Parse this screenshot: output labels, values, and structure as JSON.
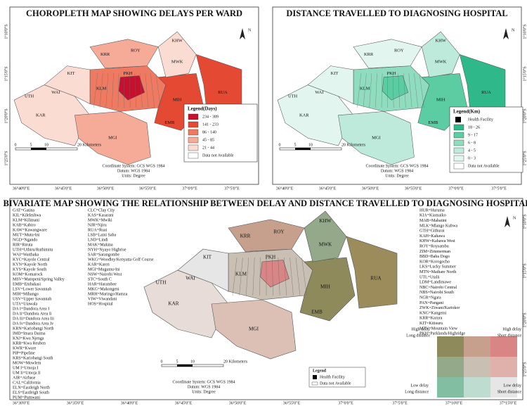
{
  "panels": [
    {
      "title": "CHOROPLETH MAP SHOWING DELAYS PER WARD",
      "legend_title": "Legend(Days)",
      "legend": [
        {
          "label": "234 - 389",
          "color": "#c8102e"
        },
        {
          "label": "141 - 233",
          "color": "#e44a33"
        },
        {
          "label": "86 - 140",
          "color": "#ef7a62"
        },
        {
          "label": "45 - 85",
          "color": "#f6ab99"
        },
        {
          "label": "21 - 44",
          "color": "#fbdcd3"
        },
        {
          "label": "Data not Available",
          "color": "#ffffff"
        }
      ],
      "lon_labels": [
        "36°40'0\"E",
        "36°45'0\"E",
        "36°50'0\"E",
        "36°55'0\"E",
        "37°0'0\"E",
        "37°5'0\"E"
      ],
      "lat_labels": [
        "1°10'0\"S",
        "1°15'0\"S",
        "1°20'0\"S",
        "1°25'0\"S"
      ],
      "scale": [
        "0",
        "5",
        "10",
        "20 Kilometers"
      ],
      "map_labels": [
        "KHW",
        "KRR",
        "ROY",
        "MWK",
        "KIT",
        "RUA",
        "MIH",
        "EMB",
        "KAR",
        "MGI",
        "UTH",
        "WAI",
        "KLM",
        "PKH"
      ]
    },
    {
      "title": "DISTANCE TRAVELLED TO DIAGNOSING HOSPITAL",
      "legend_title": "Legend(Km)",
      "legend": [
        {
          "label": "Health Facility",
          "color": "icon"
        },
        {
          "label": "18 - 26",
          "color": "#2fb88a"
        },
        {
          "label": "9 - 17",
          "color": "#5ccda3"
        },
        {
          "label": "6 - 8",
          "color": "#8fdcbf"
        },
        {
          "label": "4 - 5",
          "color": "#bdeadb"
        },
        {
          "label": "0 - 3",
          "color": "#e2f6ef"
        },
        {
          "label": "Data not Available",
          "color": "#ffffff"
        }
      ],
      "lon_labels": [
        "36°40'0\"E",
        "36°45'0\"E",
        "36°50'0\"E",
        "36°55'0\"E",
        "37°0'0\"E",
        "37°5'0\"E"
      ],
      "lat_labels": [
        "1°10'0\"S",
        "1°15'0\"S",
        "1°20'0\"S",
        "1°25'0\"S"
      ],
      "scale": [
        "0",
        "5",
        "10",
        "20 Kilometers"
      ],
      "map_labels": [
        "KHW",
        "KRR",
        "ROY",
        "MWK",
        "KIT",
        "RUA",
        "MIH",
        "EMB",
        "KAR",
        "MGI",
        "UTH",
        "WAI",
        "KLM",
        "PKH"
      ]
    },
    {
      "title": "BIVARIATE MAP SHOWING THE RELATIONSHIP BETWEEN DELAY AND DISTANCE TRAVELLED TO DIAGNOSING HOSPITAL",
      "lon_labels": [
        "36°30'0\"E",
        "36°35'0\"E",
        "36°40'0\"E",
        "36°45'0\"E",
        "36°50'0\"E",
        "36°55'0\"E",
        "37°0'0\"E",
        "37°5'0\"E",
        "37°10'0\"E",
        "37°15'0\"E"
      ],
      "lat_labels": [
        "1°10'0\"S",
        "1°15'0\"S",
        "1°20'0\"S",
        "1°25'0\"S"
      ],
      "scale": [
        "0",
        "5",
        "10",
        "20 Kilometers"
      ],
      "map_labels": [
        "KHW",
        "KRR",
        "ROY",
        "MWK",
        "KIT",
        "RUA",
        "MIH",
        "EMB",
        "KAR",
        "MGI",
        "UTH",
        "WAI",
        "KLM",
        "PKH"
      ],
      "small_legend": [
        "Legend",
        "Health Facility",
        "Data not Available"
      ],
      "corners": [
        [
          "High delay",
          "Long distance"
        ],
        [
          "High delay",
          "Short distance"
        ],
        [
          "Low delay",
          "Long distance"
        ],
        [
          "Low delay",
          "Short distance"
        ]
      ],
      "grid_colors": [
        [
          "#8f8a5c",
          "#c6a08c",
          "#d98585"
        ],
        [
          "#93a98a",
          "#c9c0b3",
          "#e0b0aa"
        ],
        [
          "#82bfa2",
          "#bedccf",
          "#e6e6e6"
        ]
      ],
      "abbreviations": [
        [
          "GAT=Gatina",
          "KIL=Kileleshwa",
          "KLM=Kilimani",
          "KAB=Kabiro",
          "KAW=Kawangware",
          "MUT=Mutu-Ini",
          "NGD=Ngando",
          "RIR=Riruta",
          "UTH=Uthiru/Ruthimitu",
          "WAI=Waithaka",
          "KYC=Kayole Central",
          "KYN=Kayole North",
          "KYS=Kayole South",
          "KOM=Komarock",
          "MSV=Matopeni/Spring Valley",
          "EMB=Embakasi",
          "LSV=Lower Savannah",
          "MIH=Mihango",
          "USV=Upper Savannah",
          "UTA=Utawala",
          "DA I=Dandora Area I",
          "DA Ii=Dandora Area Ii",
          "DA Iii=Dandora Area Iii",
          "DA Iv=Dandora Area Iv",
          "KRN=Kariobangi North",
          "IMD=Imara Daima",
          "KNJ=Kwa Njenga",
          "KRB=Kwa Reuben",
          "KWR=Kware",
          "PIP=Pipeline",
          "KRS=Kariobangi South",
          "MOW=Mowlem",
          "UM I=Umoja I",
          "UM Ii=Umoja Ii",
          "AIR=Airbase",
          "CAL=California",
          "ELN=Eastleigh North",
          "ELS=Eastleigh South",
          "PUM=Pumwani"
        ],
        [
          "CLC=Clay City",
          "KAS=Kasarani",
          "MWK=Mwiki",
          "NJR=Njiru",
          "RUA=Ruai",
          "LSB=Laini Saba",
          "LND=Lindi",
          "MAK=Makina",
          "NYH=Nyayo Highrise",
          "SAR=Sarangombe",
          "WKG=Woodley/Kenyatta Golf Course",
          "KAR=Karen",
          "MGI=Mugumu-Ini",
          "NSW=Nairobi West",
          "STC=South C",
          "HAR=Harambee",
          "MKG=Makongeni",
          "MRH=Maringo/Hamza",
          "VIW=Viwandani",
          "HOS=Hospital"
        ],
        [
          "HUR=Huruma",
          "KIA=Kiamaiko",
          "MAB=Mabatini",
          "MLK=Mlango Kubwa",
          "GTH=Githurai",
          "KAH=Kahawa",
          "KHW=Kahawa West",
          "ROY=Roysambu",
          "ZIM=Zimmerman",
          "BBD=Baba Dogo",
          "KOR=Korogocho",
          "LKS=Lucky Summer",
          "MTN=Mathare North",
          "UTL=Utalii",
          "LDM=Landimawe",
          "NBC=Nairobi Central",
          "NBS=Nairobi South",
          "NGR=Ngara",
          "PAN=Pangani",
          "ZWK=Ziwani/Kariokor",
          "KNG=Kangemi",
          "KRR=Karura",
          "KIT=Kitisuru",
          "MTV=Mountain View",
          "PKH=Parklands/Highridge"
        ]
      ]
    }
  ],
  "coordinate_info": [
    "Coordinate System: GCS WGS 1984",
    "Datum: WGS 1984",
    "Units: Degree"
  ],
  "north": "N"
}
